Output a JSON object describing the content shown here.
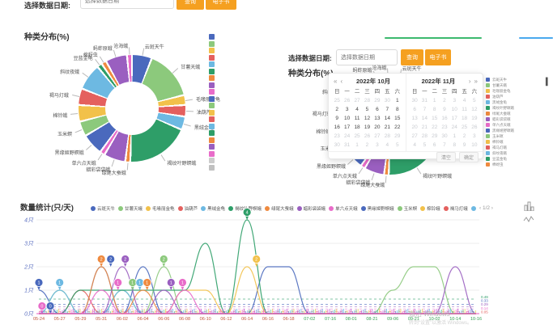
{
  "top_toolbar": {
    "label": "选择数据日期:",
    "input_placeholder": "选择数据日期",
    "query_label": "查询",
    "ebook_label": "电子书"
  },
  "left_panel": {
    "title": "种类分布(%)"
  },
  "right_panel": {
    "date_label": "选择数据日期:",
    "input_placeholder": "选择数据日期",
    "query_label": "查询",
    "ebook_label": "电子书",
    "title": "种类分布(%)"
  },
  "calendar": {
    "super_prev": "«",
    "prev": "‹",
    "next": "›",
    "super_next": "»",
    "weekdays": [
      "日",
      "一",
      "二",
      "三",
      "四",
      "五",
      "六"
    ],
    "months": [
      {
        "title": "2022年 10月",
        "cells": [
          "25m",
          "26m",
          "27m",
          "28m",
          "29m",
          "30m",
          "1",
          "2",
          "3",
          "4",
          "5",
          "6",
          "7",
          "8",
          "9",
          "10",
          "11",
          "12",
          "13",
          "14",
          "15",
          "16",
          "17",
          "18",
          "19",
          "20",
          "21",
          "22",
          "23m",
          "24m",
          "25m",
          "26m",
          "27m",
          "28m",
          "29m",
          "30m",
          "31m",
          "1m",
          "2m",
          "3m",
          "4m",
          "5m"
        ]
      },
      {
        "title": "2022年 11月",
        "cells": [
          "30m",
          "31m",
          "1m",
          "2m",
          "3m",
          "4m",
          "5m",
          "6m",
          "7m",
          "8m",
          "9m",
          "10m",
          "11m",
          "12m",
          "13m",
          "14m",
          "15m",
          "16m",
          "17m",
          "18m",
          "19m",
          "20m",
          "21m",
          "22m",
          "23m",
          "24m",
          "25m",
          "26m",
          "27m",
          "28m",
          "29m",
          "30m",
          "1m",
          "2m",
          "3m",
          "4m",
          "5m",
          "6m",
          "7m",
          "8m",
          "9m",
          "10m"
        ]
      }
    ],
    "footer_buttons": [
      "清空",
      "确定"
    ]
  },
  "bottom": {
    "title": "数量统计(只/天)",
    "pager": "‹ 1/2 ›",
    "watermark_line1": "激活 Windows",
    "watermark_line2": "转到“设置”以激活 Windows。"
  },
  "chart_data": [
    {
      "type": "pie",
      "title": "种类分布(%)",
      "legend_position": "right",
      "slices": [
        {
          "name": "云斑天牛",
          "value": 6,
          "color": "#4a69bd"
        },
        {
          "name": "甘薯天蛾",
          "value": 15,
          "color": "#8cc97c"
        },
        {
          "name": "毛喙丽金龟",
          "value": 3,
          "color": "#f2c14a"
        },
        {
          "name": "油葫芦",
          "value": 3.5,
          "color": "#e4605e"
        },
        {
          "name": "黑绒金龟",
          "value": 4,
          "color": "#6db9e2"
        },
        {
          "name": "褐纹叶野螟蛾",
          "value": 19,
          "color": "#2e9e68"
        },
        {
          "name": "绿尾大蚕蛾",
          "value": 1.5,
          "color": "#ef8a3f"
        },
        {
          "name": "蜡彩袋袋蛾",
          "value": 6.5,
          "color": "#9a5fc0"
        },
        {
          "name": "单六点天蛾",
          "value": 1.5,
          "color": "#e86cc9"
        },
        {
          "name": "黑缘姬野螟蛾",
          "value": 6.5,
          "color": "#4a69bd"
        },
        {
          "name": "玉米螟",
          "value": 4.5,
          "color": "#8cc97c"
        },
        {
          "name": "棉铃蛾",
          "value": 5,
          "color": "#f2c14a"
        },
        {
          "name": "褐马灯蛾",
          "value": 5,
          "color": "#e4605e"
        },
        {
          "name": "斜纹夜蛾",
          "value": 8,
          "color": "#6db9e2"
        },
        {
          "name": "豆蓝金龟",
          "value": 1.5,
          "color": "#2e9e68"
        },
        {
          "name": "棉蚜虫",
          "value": 1.5,
          "color": "#ef8a3f"
        },
        {
          "name": "蚂蚱原蛾",
          "value": 6.5,
          "color": "#9a5fc0"
        },
        {
          "name": "沧海蛾",
          "value": 1.5,
          "color": "#e86cc9"
        },
        {
          "name": "其他",
          "value": 0,
          "color": "#cccccc"
        },
        {
          "name": "未识别",
          "value": 0,
          "color": "#c0c0c0"
        }
      ]
    },
    {
      "type": "line",
      "title": "数量统计(只/天)",
      "x": [
        "05-24",
        "05-27",
        "05-29",
        "05-31",
        "06-02",
        "06-04",
        "06-06",
        "06-08",
        "06-10",
        "06-12",
        "06-14",
        "06-16",
        "06-18",
        "07-02",
        "07-16",
        "08-01",
        "08-21",
        "09-06",
        "09-21",
        "10-02",
        "10-14",
        "10-16"
      ],
      "yticks": [
        "0只",
        "1只",
        "2只",
        "3只",
        "4只"
      ],
      "ylim": [
        0,
        4
      ],
      "grid": true,
      "xlabel_color_early": "#c1553a",
      "xlabel_color_late": "#2f9e4f",
      "series": [
        {
          "name": "云斑天牛",
          "color": "#4a69bd",
          "values": [
            1,
            0,
            0,
            2,
            0,
            2,
            0,
            0,
            0,
            0,
            0,
            2,
            2,
            0,
            0,
            0,
            0,
            0,
            0,
            0,
            0,
            0
          ]
        },
        {
          "name": "甘薯天蛾",
          "color": "#8cc97c",
          "values": [
            0,
            1,
            0,
            0,
            1,
            0,
            2,
            0,
            0,
            0,
            0,
            0,
            0,
            0,
            0,
            0,
            0,
            1,
            2,
            2,
            0,
            0
          ]
        },
        {
          "name": "毛喙丽金龟",
          "color": "#f2c14a",
          "values": [
            0,
            0,
            0,
            0,
            0,
            0,
            0,
            1,
            1,
            0,
            2,
            0,
            0,
            0,
            0,
            0,
            0,
            0,
            0,
            0,
            0,
            0
          ]
        },
        {
          "name": "油葫芦",
          "color": "#e4605e",
          "values": [
            0,
            0,
            1,
            0,
            0,
            0,
            0,
            0,
            0,
            0,
            0,
            0,
            0,
            0,
            0,
            0,
            0,
            0,
            0,
            0,
            0,
            0
          ]
        },
        {
          "name": "黑绒金龟",
          "color": "#6db9e2",
          "values": [
            0,
            1,
            0,
            0,
            1,
            0,
            0,
            0,
            0,
            0,
            0,
            0,
            0,
            0,
            0,
            0,
            0,
            0,
            0,
            0,
            0,
            0
          ]
        },
        {
          "name": "褐纹叶野螟蛾",
          "color": "#2e9e68",
          "values": [
            0,
            0,
            1,
            1,
            1,
            1,
            1,
            1,
            3,
            0,
            4,
            0,
            0,
            0,
            0,
            0,
            0,
            0,
            0,
            0,
            0,
            0
          ]
        },
        {
          "name": "绿尾大蚕蛾",
          "color": "#ef8a3f",
          "values": [
            0,
            0,
            0,
            2,
            0,
            1,
            0,
            0,
            0,
            0,
            0,
            0,
            0,
            0,
            0,
            0,
            0,
            0,
            0,
            0,
            0,
            0
          ]
        },
        {
          "name": "蜡彩袋袋蛾",
          "color": "#9a5fc0",
          "values": [
            0,
            0,
            0,
            0,
            2,
            0,
            1,
            0,
            0,
            0,
            0,
            0,
            0,
            0,
            0,
            0,
            0,
            0,
            0,
            0,
            2,
            0
          ]
        },
        {
          "name": "单六点天蛾",
          "color": "#e86cc9",
          "values": [
            0,
            0,
            0,
            1,
            0,
            0,
            0,
            1,
            0,
            0,
            0,
            0,
            0,
            0,
            0,
            0,
            0,
            0,
            0,
            0,
            0,
            0
          ]
        }
      ],
      "markers": [
        {
          "fx": 0,
          "v": 1,
          "color": "#4a69bd"
        },
        {
          "fx": 0.15,
          "v": 0,
          "color": "#e86cc9"
        },
        {
          "fx": 0.55,
          "v": 0,
          "color": "#4a69bd"
        },
        {
          "fx": 1,
          "v": 1,
          "color": "#6db9e2"
        },
        {
          "fx": 3,
          "v": 2,
          "color": "#ef8a3f"
        },
        {
          "fx": 3.45,
          "v": 2,
          "color": "#4a69bd"
        },
        {
          "fx": 3.8,
          "v": 1,
          "color": "#e86cc9"
        },
        {
          "fx": 4.15,
          "v": 2,
          "color": "#9a5fc0"
        },
        {
          "fx": 4.5,
          "v": 1,
          "color": "#8cc97c"
        },
        {
          "fx": 4.85,
          "v": 1,
          "color": "#6db9e2"
        },
        {
          "fx": 5.2,
          "v": 1,
          "color": "#ef8a3f"
        },
        {
          "fx": 6,
          "v": 2,
          "color": "#8cc97c"
        },
        {
          "fx": 6.35,
          "v": 1,
          "color": "#9a5fc0"
        },
        {
          "fx": 6.9,
          "v": 1,
          "color": "#e86cc9"
        },
        {
          "fx": 10,
          "v": 4,
          "color": "#2e9e68"
        },
        {
          "fx": 10.45,
          "v": 2,
          "color": "#f2c14a"
        }
      ],
      "avg_lines": [
        {
          "value": 0.62,
          "color": "#2e9e68"
        },
        {
          "value": 0.4,
          "color": "#4a69bd"
        },
        {
          "value": 0.3,
          "color": "#9a5fc0"
        },
        {
          "value": 0.2,
          "color": "#e86cc9"
        },
        {
          "value": 0.1,
          "color": "#e4605e"
        }
      ],
      "end_labels": [
        {
          "text": "0.49",
          "color": "#2e9e68"
        },
        {
          "text": "0.33",
          "color": "#4a69bd"
        },
        {
          "text": "0.29",
          "color": "#9a5fc0"
        },
        {
          "text": "0.14",
          "color": "#e86cc9"
        },
        {
          "text": "0.05",
          "color": "#e4605e"
        }
      ],
      "legend_items_visible": 15,
      "legend_last_item": "其他",
      "legend_pager": "‹ 1/2 ›"
    }
  ]
}
